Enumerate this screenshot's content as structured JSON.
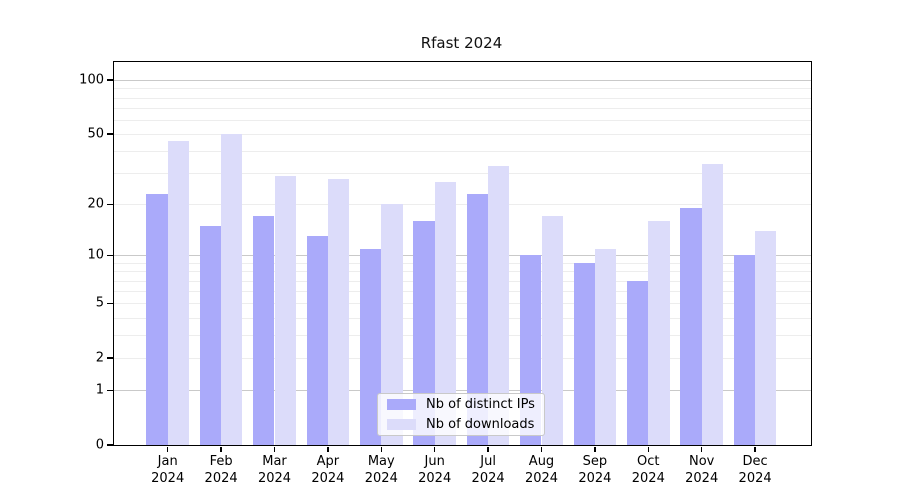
{
  "chart_data": {
    "type": "bar",
    "title": "Rfast 2024",
    "year_label": "2024",
    "categories": [
      "Jan",
      "Feb",
      "Mar",
      "Apr",
      "May",
      "Jun",
      "Jul",
      "Aug",
      "Sep",
      "Oct",
      "Nov",
      "Dec"
    ],
    "series": [
      {
        "name": "Nb of distinct IPs",
        "color": "#aaaafa",
        "values": [
          23,
          15,
          17,
          13,
          11,
          16,
          23,
          10,
          9,
          7,
          19,
          10
        ]
      },
      {
        "name": "Nb of downloads",
        "color": "#dcdcfa",
        "values": [
          46,
          50,
          29,
          28,
          20,
          27,
          33,
          17,
          11,
          16,
          34,
          14
        ]
      }
    ],
    "xlabel": "",
    "ylabel": "",
    "y_axis": {
      "scale": "log10(value+1)",
      "tick_labels": [
        0,
        1,
        2,
        5,
        10,
        20,
        50,
        100
      ],
      "major_gridlines": [
        1,
        10,
        100
      ],
      "minor_gridlines": [
        2,
        3,
        4,
        5,
        6,
        7,
        8,
        9,
        20,
        30,
        40,
        50,
        60,
        70,
        80,
        90
      ],
      "range_max": 126
    },
    "legend_position": "bottom-center",
    "grid": true,
    "colors": {
      "axis": "#000000",
      "major_grid": "#c9c9c9",
      "minor_grid": "#ededed"
    }
  }
}
